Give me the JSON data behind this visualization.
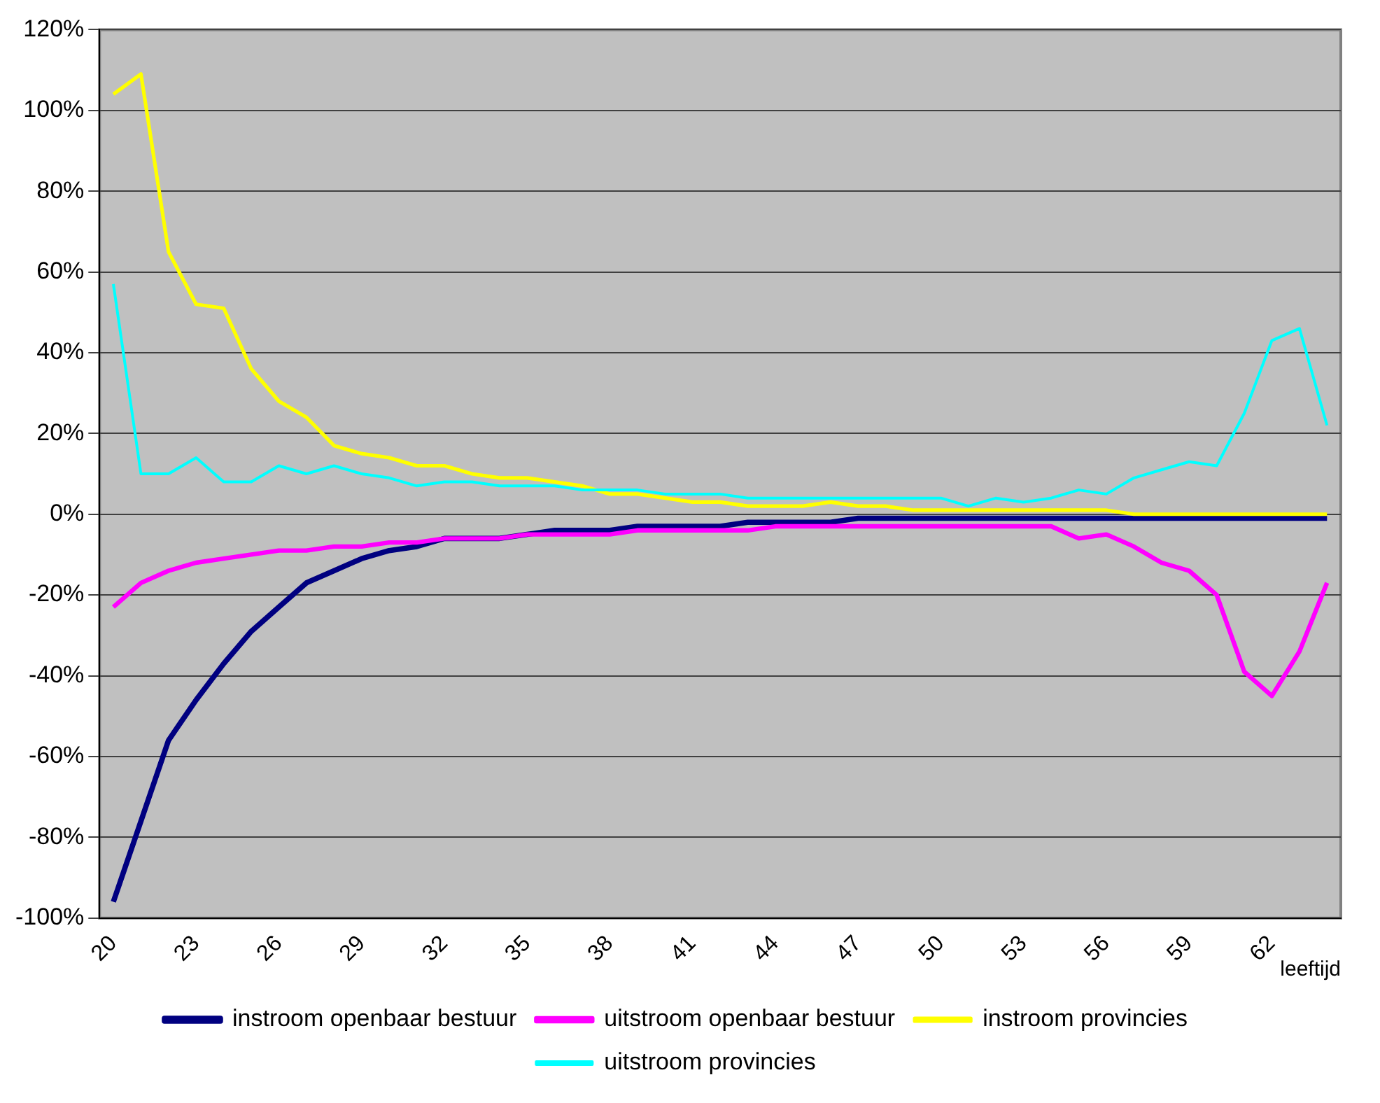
{
  "chart_data": {
    "type": "line",
    "xlabel": "leeftijd",
    "categories": [
      "20",
      null,
      null,
      "23",
      null,
      null,
      "26",
      null,
      null,
      "29",
      null,
      null,
      "32",
      null,
      null,
      "35",
      null,
      null,
      "38",
      null,
      null,
      "41",
      null,
      null,
      "44",
      null,
      null,
      "47",
      null,
      null,
      "50",
      null,
      null,
      "53",
      null,
      null,
      "56",
      null,
      null,
      "59",
      null,
      null,
      "62",
      null,
      null
    ],
    "series": [
      {
        "name": "instroom openbaar bestuur",
        "color": "#000080",
        "values": [
          -96,
          -76,
          -56,
          -46,
          -37,
          -29,
          -23,
          -17,
          -14,
          -11,
          -9,
          -8,
          -6,
          -6,
          -6,
          -5,
          -4,
          -4,
          -4,
          -3,
          -3,
          -3,
          -3,
          -2,
          -2,
          -2,
          -2,
          -1,
          -1,
          -1,
          -1,
          -1,
          -1,
          -1,
          -1,
          -1,
          -1,
          -1,
          -1,
          -1,
          -1,
          -1,
          -1,
          -1,
          -1
        ]
      },
      {
        "name": "uitstroom openbaar bestuur",
        "color": "#ff00ff",
        "values": [
          -23,
          -17,
          -14,
          -12,
          -11,
          -10,
          -9,
          -9,
          -8,
          -8,
          -7,
          -7,
          -6,
          -6,
          -6,
          -5,
          -5,
          -5,
          -5,
          -4,
          -4,
          -4,
          -4,
          -4,
          -3,
          -3,
          -3,
          -3,
          -3,
          -3,
          -3,
          -3,
          -3,
          -3,
          -3,
          -6,
          -5,
          -8,
          -12,
          -14,
          -20,
          -39,
          -45,
          -34,
          -17
        ]
      },
      {
        "name": "instroom provincies",
        "color": "#ffff00",
        "values": [
          104,
          109,
          65,
          52,
          51,
          36,
          28,
          24,
          17,
          15,
          14,
          12,
          12,
          10,
          9,
          9,
          8,
          7,
          5,
          5,
          4,
          3,
          3,
          2,
          2,
          2,
          3,
          2,
          2,
          1,
          1,
          1,
          1,
          1,
          1,
          1,
          1,
          0,
          0,
          0,
          0,
          0,
          0,
          0,
          0
        ]
      },
      {
        "name": "uitstroom provincies",
        "color": "#00ffff",
        "values": [
          57,
          10,
          10,
          14,
          8,
          8,
          12,
          10,
          12,
          10,
          9,
          7,
          8,
          8,
          7,
          7,
          7,
          6,
          6,
          6,
          5,
          5,
          5,
          4,
          4,
          4,
          4,
          4,
          4,
          4,
          4,
          2,
          4,
          3,
          4,
          6,
          5,
          9,
          11,
          13,
          12,
          25,
          43,
          46,
          22
        ]
      }
    ],
    "ylim": [
      -100,
      120
    ],
    "yticks": [
      {
        "value": -100,
        "label": "-100%"
      },
      {
        "value": -80,
        "label": "-80%"
      },
      {
        "value": -60,
        "label": "-60%"
      },
      {
        "value": -40,
        "label": "-40%"
      },
      {
        "value": -20,
        "label": "-20%"
      },
      {
        "value": 0,
        "label": "0%"
      },
      {
        "value": 20,
        "label": "20%"
      },
      {
        "value": 40,
        "label": "40%"
      },
      {
        "value": 60,
        "label": "60%"
      },
      {
        "value": 80,
        "label": "80%"
      },
      {
        "value": 100,
        "label": "100%"
      },
      {
        "value": 120,
        "label": "120%"
      }
    ],
    "grid": "y",
    "legend": "bottom",
    "marker": "none",
    "line_style": "solid"
  }
}
